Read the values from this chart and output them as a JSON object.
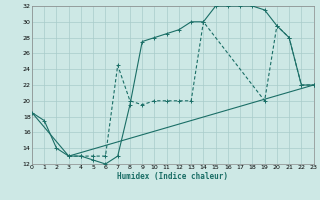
{
  "xlabel": "Humidex (Indice chaleur)",
  "bg_color": "#cde8e5",
  "grid_color": "#a8ccca",
  "line_color": "#1a6e66",
  "xlim": [
    0,
    23
  ],
  "ylim": [
    12,
    32
  ],
  "xticks": [
    0,
    1,
    2,
    3,
    4,
    5,
    6,
    7,
    8,
    9,
    10,
    11,
    12,
    13,
    14,
    15,
    16,
    17,
    18,
    19,
    20,
    21,
    22,
    23
  ],
  "yticks": [
    12,
    14,
    16,
    18,
    20,
    22,
    24,
    26,
    28,
    30,
    32
  ],
  "curve1_x": [
    0,
    1,
    2,
    3,
    4,
    5,
    6,
    7,
    8,
    9,
    10,
    11,
    12,
    13,
    14,
    15,
    16,
    17,
    18,
    19,
    20,
    21,
    22,
    23
  ],
  "curve1_y": [
    18.5,
    17.5,
    14.0,
    13.0,
    13.0,
    12.5,
    12.0,
    13.0,
    19.5,
    27.5,
    28.0,
    28.5,
    29.0,
    30.0,
    30.0,
    32.0,
    32.0,
    32.0,
    32.0,
    31.5,
    29.5,
    28.0,
    22.0,
    22.0
  ],
  "curve2_x": [
    3,
    4,
    5,
    6,
    7,
    8,
    9,
    10,
    11,
    12,
    13,
    14,
    19,
    20,
    21,
    22,
    23
  ],
  "curve2_y": [
    13.0,
    13.0,
    13.0,
    13.0,
    24.5,
    20.0,
    19.5,
    20.0,
    20.0,
    20.0,
    20.0,
    30.0,
    20.0,
    29.5,
    28.0,
    22.0,
    22.0
  ],
  "curve3_x": [
    0,
    3,
    23
  ],
  "curve3_y": [
    18.5,
    13.0,
    22.0
  ]
}
